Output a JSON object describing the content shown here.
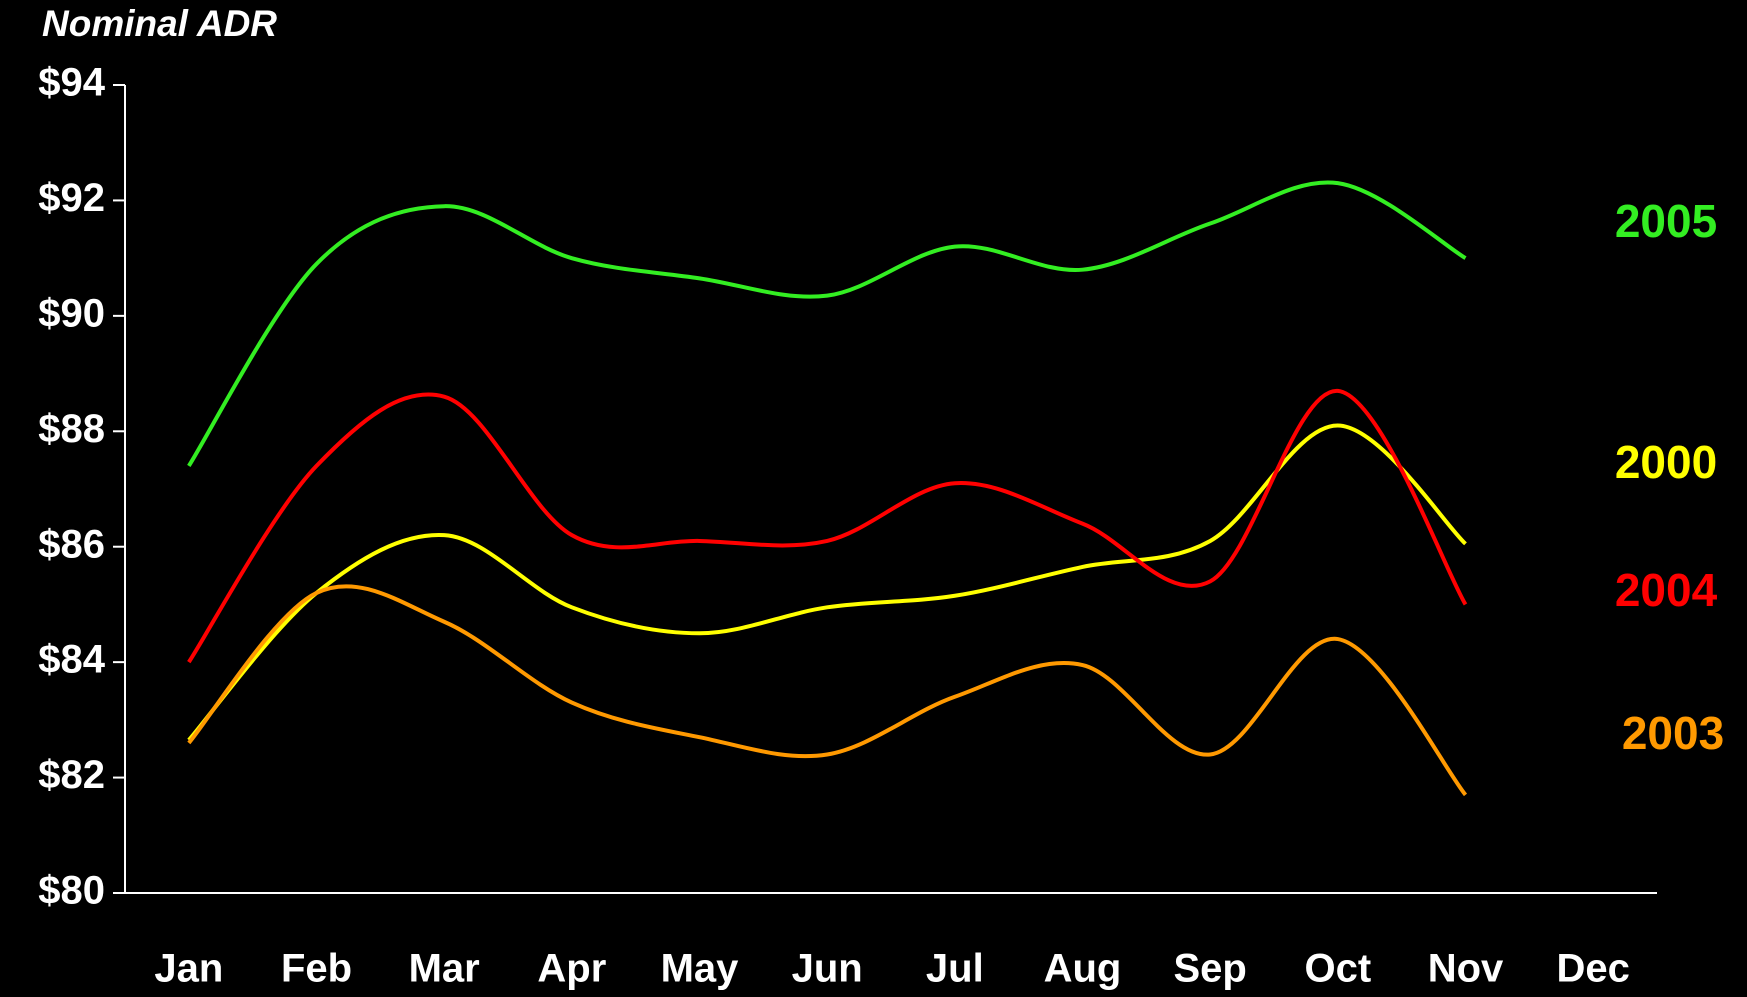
{
  "chart_data": {
    "type": "line",
    "title": "Nominal ADR",
    "categories": [
      "Jan",
      "Feb",
      "Mar",
      "Apr",
      "May",
      "Jun",
      "Jul",
      "Aug",
      "Sep",
      "Oct",
      "Nov",
      "Dec"
    ],
    "series": [
      {
        "name": "2005",
        "color": "#33ee22",
        "values": [
          87.4,
          90.9,
          91.9,
          91.0,
          90.65,
          90.35,
          91.2,
          90.8,
          91.6,
          92.3,
          91.0,
          null
        ]
      },
      {
        "name": "2000",
        "color": "#ffff00",
        "values": [
          82.65,
          85.2,
          86.2,
          84.95,
          84.5,
          84.95,
          85.15,
          85.65,
          86.1,
          88.1,
          86.05,
          null
        ]
      },
      {
        "name": "2004",
        "color": "#ff0000",
        "values": [
          84.0,
          87.4,
          88.6,
          86.2,
          86.1,
          86.1,
          87.1,
          86.4,
          85.4,
          88.7,
          85.0,
          null
        ]
      },
      {
        "name": "2003",
        "color": "#ff9900",
        "values": [
          82.6,
          85.2,
          84.7,
          83.3,
          82.7,
          82.4,
          83.4,
          83.95,
          82.4,
          84.4,
          81.7,
          null
        ]
      }
    ],
    "ylim": [
      80,
      94
    ],
    "yticks": [
      {
        "value": 80,
        "label": "$80"
      },
      {
        "value": 82,
        "label": "$82"
      },
      {
        "value": 84,
        "label": "$84"
      },
      {
        "value": 86,
        "label": "$86"
      },
      {
        "value": 88,
        "label": "$88"
      },
      {
        "value": 90,
        "label": "$90"
      },
      {
        "value": 92,
        "label": "$92"
      },
      {
        "value": 94,
        "label": "$94"
      }
    ],
    "grid": false
  }
}
